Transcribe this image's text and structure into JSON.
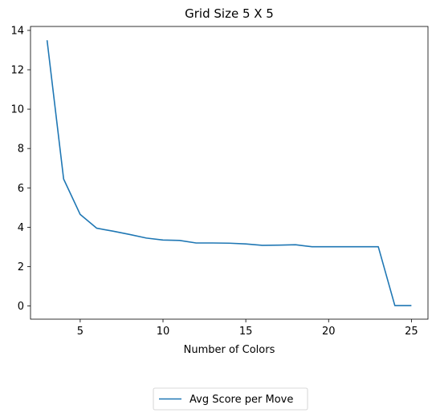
{
  "chart_data": {
    "type": "line",
    "title": "Grid Size 5 X 5",
    "xlabel": "Number of Colors",
    "ylabel": "",
    "xlim": [
      2.0,
      26.0
    ],
    "ylim": [
      -0.67,
      14.2
    ],
    "xticks": [
      5,
      10,
      15,
      20,
      25
    ],
    "yticks": [
      0,
      2,
      4,
      6,
      8,
      10,
      12,
      14
    ],
    "grid": false,
    "legend": {
      "position": "bottom-center, below axes"
    },
    "colors": {
      "series": "#1f77b4"
    },
    "series": [
      {
        "name": "Avg Score per Move",
        "x": [
          3,
          4,
          5,
          6,
          7,
          8,
          9,
          10,
          11,
          12,
          13,
          14,
          15,
          16,
          17,
          18,
          19,
          20,
          21,
          22,
          23,
          24,
          25
        ],
        "y": [
          13.5,
          6.45,
          4.65,
          3.95,
          3.8,
          3.63,
          3.45,
          3.35,
          3.33,
          3.2,
          3.2,
          3.19,
          3.15,
          3.08,
          3.09,
          3.11,
          3.01,
          3.01,
          3.01,
          3.01,
          3.01,
          0.02,
          0.02
        ]
      }
    ]
  }
}
